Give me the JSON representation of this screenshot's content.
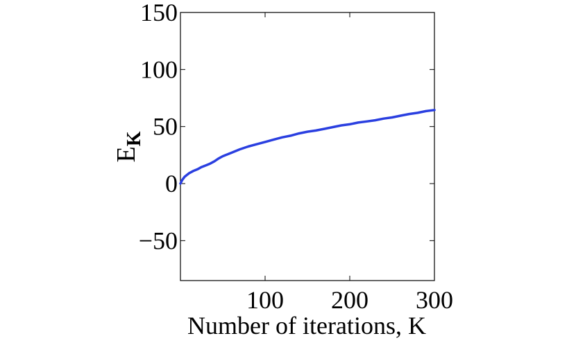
{
  "chart_data": {
    "type": "line",
    "title": "",
    "xlabel": "Number of iterations, K",
    "ylabel": {
      "main": "E",
      "subscript": "K"
    },
    "xlim": [
      0,
      300
    ],
    "ylim": [
      -85,
      150
    ],
    "xticks": [
      100,
      200,
      300
    ],
    "xtick_labels": [
      "100",
      "200",
      "300"
    ],
    "yticks": [
      -50,
      0,
      50,
      100,
      150
    ],
    "ytick_labels": [
      "−50",
      "0",
      "50",
      "100",
      "150"
    ],
    "grid": false,
    "legend": "none",
    "series": [
      {
        "color": "#2a3fe0",
        "x": [
          0,
          2,
          5,
          10,
          15,
          20,
          25,
          30,
          35,
          40,
          45,
          50,
          60,
          70,
          80,
          90,
          100,
          110,
          120,
          130,
          140,
          150,
          160,
          170,
          180,
          190,
          200,
          210,
          220,
          230,
          240,
          250,
          260,
          270,
          280,
          290,
          300
        ],
        "y": [
          0,
          3,
          6,
          9,
          11,
          12.5,
          14.5,
          16,
          17.5,
          19.5,
          22,
          24,
          27,
          30,
          32.5,
          34.5,
          36.5,
          38.5,
          40.5,
          42,
          44,
          45.5,
          46.5,
          48,
          49.5,
          51,
          52,
          53.5,
          54.5,
          55.5,
          57,
          58,
          59.5,
          61,
          62,
          63.5,
          64.5
        ]
      }
    ]
  }
}
